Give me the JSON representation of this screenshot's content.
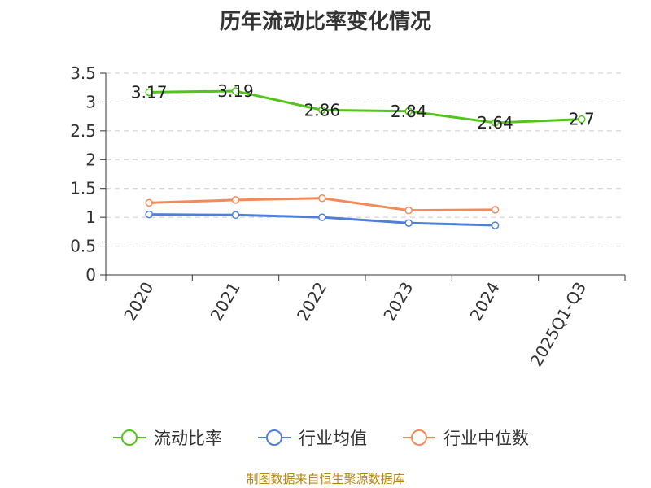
{
  "chart_data": {
    "type": "line",
    "title": "历年流动比率变化情况",
    "categories": [
      "2020",
      "2021",
      "2022",
      "2023",
      "2024",
      "2025Q1-Q3"
    ],
    "y_ticks": [
      "0",
      "0.5",
      "1",
      "1.5",
      "2",
      "2.5",
      "3",
      "3.5"
    ],
    "ylim": [
      0,
      3.5
    ],
    "grid": true,
    "legend_position": "bottom",
    "series": [
      {
        "name": "流动比率",
        "color": "#52c41a",
        "values": [
          3.17,
          3.19,
          2.86,
          2.84,
          2.64,
          2.7
        ],
        "labels": [
          "3.17",
          "3.19",
          "2.86",
          "2.84",
          "2.64",
          "2.7"
        ],
        "show_labels": true
      },
      {
        "name": "行业均值",
        "color": "#4f7fd9",
        "values": [
          1.05,
          1.04,
          1.0,
          0.9,
          0.86,
          null
        ],
        "show_labels": false
      },
      {
        "name": "行业中位数",
        "color": "#f28b5a",
        "values": [
          1.25,
          1.3,
          1.33,
          1.12,
          1.13,
          null
        ],
        "show_labels": false
      }
    ]
  },
  "source": "制图数据来自恒生聚源数据库"
}
